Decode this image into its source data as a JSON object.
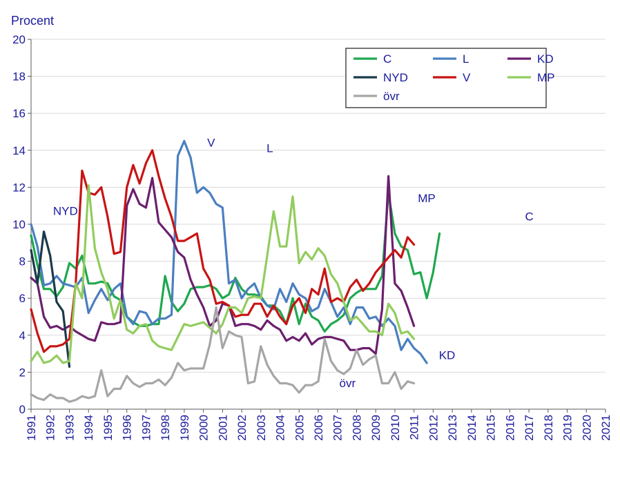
{
  "chart_data": {
    "type": "line",
    "ylabel": "Procent",
    "ylim": [
      0,
      20
    ],
    "y_ticks": [
      0,
      2,
      4,
      6,
      8,
      10,
      12,
      14,
      16,
      18,
      20
    ],
    "x_ticks": [
      "1991",
      "1992",
      "1993",
      "1994",
      "1995",
      "1996",
      "1997",
      "1998",
      "1999",
      "2000",
      "2001",
      "2002",
      "2003",
      "2004",
      "2005",
      "2006",
      "2007",
      "2008",
      "2009",
      "2010",
      "2011",
      "2012",
      "2013",
      "2014",
      "2015",
      "2016",
      "2017",
      "2018",
      "2019",
      "2020",
      "2021"
    ],
    "x_start": 1991.0,
    "x_step": 0.3333,
    "grid": true,
    "legend_position": "top-right",
    "series": [
      {
        "name": "C",
        "color": "#1fa84f",
        "values": [
          9.4,
          7.8,
          6.5,
          6.5,
          6.1,
          6.6,
          7.9,
          7.6,
          8.3,
          6.8,
          6.8,
          6.9,
          6.8,
          6.1,
          5.9,
          5.0,
          4.7,
          4.5,
          4.5,
          4.6,
          4.6,
          7.2,
          5.8,
          5.3,
          5.7,
          6.5,
          6.6,
          6.6,
          6.7,
          6.5,
          6.0,
          6.2,
          7.1,
          6.5,
          6.2,
          6.2,
          6.1,
          5.6,
          5.6,
          5.3,
          4.6,
          6.0,
          4.6,
          5.7,
          5.0,
          4.8,
          4.2,
          4.6,
          4.8,
          5.1,
          6.0,
          6.3,
          6.5,
          6.5,
          6.5,
          7.2,
          11.7,
          9.5,
          8.8,
          8.6,
          7.3,
          7.4,
          6.0,
          7.4,
          9.5
        ]
      },
      {
        "name": "L",
        "color": "#4a7fc0",
        "values": [
          10.0,
          8.8,
          6.7,
          6.8,
          7.2,
          6.8,
          6.7,
          6.6,
          7.1,
          5.2,
          5.9,
          6.5,
          5.9,
          6.5,
          6.8,
          5.0,
          4.6,
          5.3,
          5.2,
          4.6,
          4.9,
          4.9,
          5.1,
          13.7,
          14.5,
          13.6,
          11.7,
          12.0,
          11.7,
          11.1,
          10.9,
          6.8,
          7.0,
          6.0,
          6.5,
          6.8,
          6.0,
          5.6,
          5.4,
          6.5,
          5.8,
          6.8,
          6.2,
          6.0,
          5.3,
          5.5,
          6.5,
          5.8,
          5.0,
          5.5,
          4.6,
          5.5,
          5.5,
          4.9,
          5.0,
          4.5,
          4.9,
          4.5,
          3.2,
          3.8,
          3.3,
          3.0,
          2.5
        ]
      },
      {
        "name": "KD",
        "color": "#6b1f6e",
        "values": [
          7.1,
          6.8,
          5.0,
          4.4,
          4.5,
          4.3,
          4.5,
          4.2,
          4.0,
          3.8,
          3.7,
          4.7,
          4.6,
          4.6,
          4.7,
          11.0,
          11.9,
          11.1,
          10.9,
          12.5,
          10.1,
          9.7,
          9.3,
          8.5,
          8.2,
          7.0,
          6.2,
          5.5,
          4.5,
          4.8,
          5.7,
          5.6,
          4.5,
          4.6,
          4.6,
          4.5,
          4.3,
          4.8,
          4.5,
          4.3,
          3.7,
          3.9,
          3.7,
          4.1,
          3.5,
          3.8,
          3.9,
          3.9,
          3.8,
          3.7,
          3.2,
          3.2,
          3.3,
          3.3,
          3.0,
          5.4,
          12.6,
          6.8,
          6.4,
          5.5,
          4.5
        ]
      },
      {
        "name": "NYD",
        "color": "#1a3a4a",
        "values": [
          8.6,
          6.8,
          9.6,
          8.3,
          5.8,
          5.3,
          2.3
        ]
      },
      {
        "name": "V",
        "color": "#c81414",
        "values": [
          5.4,
          4.1,
          3.1,
          3.4,
          3.4,
          3.5,
          3.8,
          6.8,
          12.9,
          11.7,
          11.6,
          12.0,
          10.4,
          8.4,
          8.5,
          12.0,
          13.2,
          12.2,
          13.3,
          14.0,
          12.6,
          11.4,
          10.4,
          9.1,
          9.1,
          9.3,
          9.5,
          7.6,
          7.0,
          5.7,
          5.8,
          5.6,
          5.0,
          5.1,
          5.1,
          5.7,
          5.7,
          5.0,
          5.6,
          5.0,
          4.6,
          5.6,
          6.0,
          5.2,
          6.5,
          6.2,
          7.6,
          5.8,
          6.0,
          5.8,
          6.6,
          7.0,
          6.4,
          6.8,
          7.4,
          7.8,
          8.2,
          8.6,
          8.2,
          9.3,
          8.9
        ]
      },
      {
        "name": "MP",
        "color": "#92cc5e",
        "values": [
          2.6,
          3.1,
          2.5,
          2.6,
          2.9,
          2.5,
          2.6,
          6.8,
          6.0,
          12.1,
          8.7,
          7.4,
          6.5,
          4.9,
          5.9,
          4.3,
          4.1,
          4.5,
          4.6,
          3.7,
          3.4,
          3.3,
          3.2,
          3.9,
          4.6,
          4.5,
          4.6,
          4.7,
          4.4,
          4.1,
          4.6,
          5.5,
          5.5,
          5.2,
          6.0,
          6.1,
          6.0,
          8.3,
          10.7,
          8.8,
          8.8,
          11.5,
          7.9,
          8.5,
          8.1,
          8.7,
          8.3,
          7.3,
          6.8,
          5.8,
          4.8,
          5.0,
          4.6,
          4.2,
          4.2,
          4.0,
          5.7,
          5.2,
          4.1,
          4.2,
          3.8
        ]
      },
      {
        "name": "övr",
        "color": "#a6a6a6",
        "values": [
          0.8,
          0.6,
          0.5,
          0.8,
          0.6,
          0.6,
          0.4,
          0.5,
          0.7,
          0.6,
          0.7,
          2.1,
          0.7,
          1.1,
          1.1,
          1.8,
          1.4,
          1.2,
          1.4,
          1.4,
          1.6,
          1.3,
          1.7,
          2.5,
          2.1,
          2.2,
          2.2,
          2.2,
          3.5,
          5.5,
          3.3,
          4.2,
          4.0,
          3.9,
          1.4,
          1.5,
          3.4,
          2.4,
          1.8,
          1.4,
          1.4,
          1.3,
          0.9,
          1.3,
          1.3,
          1.5,
          3.8,
          2.6,
          2.1,
          1.9,
          2.2,
          3.2,
          2.4,
          2.7,
          2.9,
          1.4,
          1.4,
          2.0,
          1.1,
          1.5,
          1.4
        ]
      }
    ],
    "annotations": [
      {
        "text": "NYD",
        "x": 1992.15,
        "y": 10.5
      },
      {
        "text": "V",
        "x": 2000.2,
        "y": 14.2
      },
      {
        "text": "L",
        "x": 2003.3,
        "y": 13.9
      },
      {
        "text": "MP",
        "x": 2011.2,
        "y": 11.2
      },
      {
        "text": "C",
        "x": 2016.8,
        "y": 10.2
      },
      {
        "text": "KD",
        "x": 2012.3,
        "y": 2.7
      },
      {
        "text": "övr",
        "x": 2007.1,
        "y": 1.2
      }
    ],
    "legend_columns": [
      [
        "C",
        "NYD",
        "övr"
      ],
      [
        "L",
        "V"
      ],
      [
        "KD",
        "MP"
      ]
    ]
  }
}
